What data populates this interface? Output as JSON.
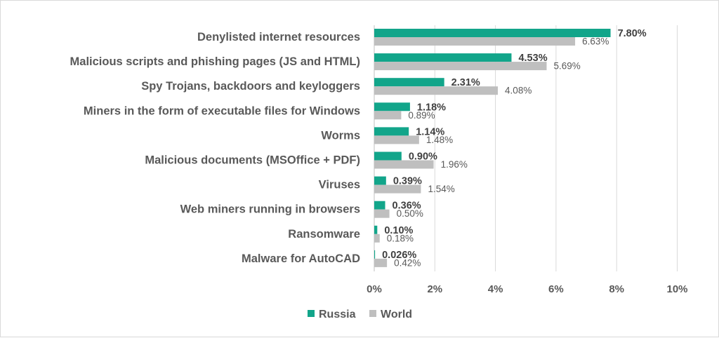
{
  "chart_data": {
    "type": "bar",
    "orientation": "horizontal",
    "categories": [
      "Denylisted internet resources",
      "Malicious scripts and phishing pages (JS and HTML)",
      "Spy Trojans, backdoors and keyloggers",
      "Miners in the form of executable files for Windows",
      "Worms",
      "Malicious documents (MSOffice + PDF)",
      "Viruses",
      "Web miners running in browsers",
      "Ransomware",
      "Malware for AutoCAD"
    ],
    "series": [
      {
        "name": "Russia",
        "color": "#12a58a",
        "values": [
          7.8,
          4.53,
          2.31,
          1.18,
          1.14,
          0.9,
          0.39,
          0.36,
          0.1,
          0.026
        ],
        "labels": [
          "7.80%",
          "4.53%",
          "2.31%",
          "1.18%",
          "1.14%",
          "0.90%",
          "0.39%",
          "0.36%",
          "0.10%",
          "0.026%"
        ]
      },
      {
        "name": "World",
        "color": "#bfbfbf",
        "values": [
          6.63,
          5.69,
          4.08,
          0.89,
          1.48,
          1.96,
          1.54,
          0.5,
          0.18,
          0.42
        ],
        "labels": [
          "6.63%",
          "5.69%",
          "4.08%",
          "0.89%",
          "1.48%",
          "1.96%",
          "1.54%",
          "0.50%",
          "0.18%",
          "0.42%"
        ]
      }
    ],
    "xlim": [
      0,
      10
    ],
    "xticks": [
      "0%",
      "2%",
      "4%",
      "6%",
      "8%",
      "10%"
    ],
    "grid": true,
    "legend_position": "bottom"
  }
}
